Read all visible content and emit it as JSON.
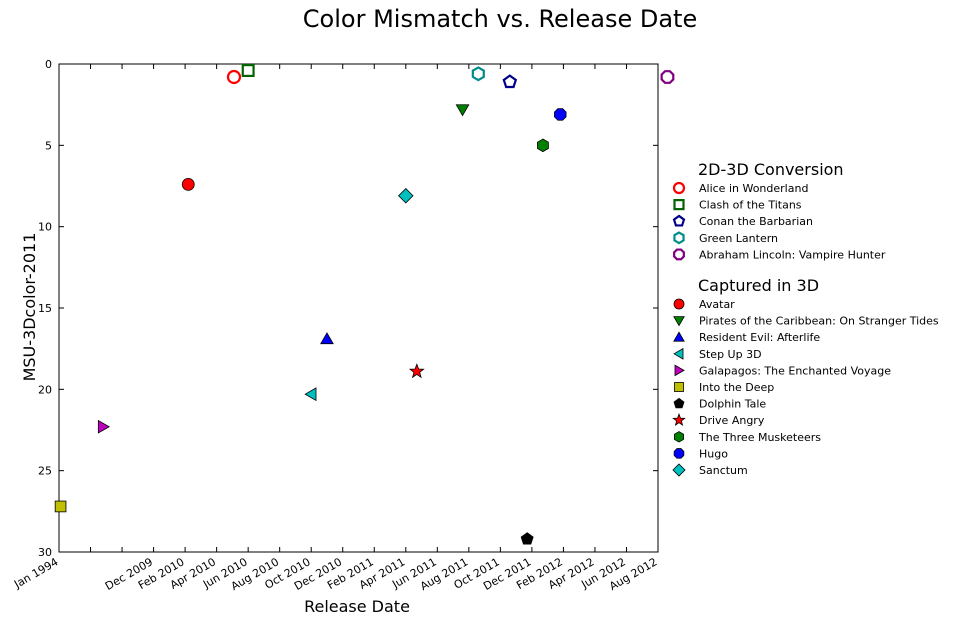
{
  "chart_data": {
    "type": "scatter",
    "title": "Color Mismatch vs. Release Date",
    "xlabel": "Release Date",
    "ylabel": "MSU-3Dcolor-2011",
    "ylim": [
      30,
      0
    ],
    "yticks": [
      0,
      5,
      10,
      15,
      20,
      25,
      30
    ],
    "xlim": [
      "1994-01",
      "2012-08"
    ],
    "xticks": [
      {
        "t": 0,
        "label": "Jan 1994"
      },
      {
        "t": 3,
        "label": "Dec 2009"
      },
      {
        "t": 4,
        "label": "Feb 2010"
      },
      {
        "t": 5,
        "label": "Apr 2010"
      },
      {
        "t": 6,
        "label": "Jun 2010"
      },
      {
        "t": 7,
        "label": "Aug 2010"
      },
      {
        "t": 8,
        "label": "Oct 2010"
      },
      {
        "t": 9,
        "label": "Dec 2010"
      },
      {
        "t": 10,
        "label": "Feb 2011"
      },
      {
        "t": 11,
        "label": "Apr 2011"
      },
      {
        "t": 12,
        "label": "Jun 2011"
      },
      {
        "t": 13,
        "label": "Aug 2011"
      },
      {
        "t": 14,
        "label": "Oct 2011"
      },
      {
        "t": 15,
        "label": "Dec 2011"
      },
      {
        "t": 16,
        "label": "Feb 2012"
      },
      {
        "t": 17,
        "label": "Apr 2012"
      },
      {
        "t": 18,
        "label": "Jun 2012"
      },
      {
        "t": 19,
        "label": "Aug 2012"
      }
    ],
    "grid": false,
    "legend_placement": "right",
    "groups": [
      {
        "title": "2D-3D Conversion",
        "series": [
          {
            "name": "Alice in Wonderland",
            "marker": "circle",
            "color": "#ff0000",
            "hollow": true,
            "date": "2010-03",
            "t": 5.55,
            "y": 0.8
          },
          {
            "name": "Clash of the Titans",
            "marker": "square",
            "color": "#006400",
            "hollow": true,
            "date": "2010-04",
            "t": 6.0,
            "y": 0.4
          },
          {
            "name": "Conan the Barbarian",
            "marker": "pentagon",
            "color": "#00008b",
            "hollow": true,
            "date": "2011-08",
            "t": 14.3,
            "y": 1.1
          },
          {
            "name": "Green Lantern",
            "marker": "hexagon",
            "color": "#008b8b",
            "hollow": true,
            "date": "2011-06",
            "t": 13.3,
            "y": 0.6
          },
          {
            "name": "Abraham Lincoln: Vampire Hunter",
            "marker": "octagon",
            "color": "#800080",
            "hollow": true,
            "date": "2012-06",
            "t": 19.3,
            "y": 0.8
          }
        ]
      },
      {
        "title": "Captured in 3D",
        "series": [
          {
            "name": "Avatar",
            "marker": "circle",
            "color": "#ff0000",
            "hollow": false,
            "date": "2009-12",
            "t": 4.1,
            "y": 7.4
          },
          {
            "name": "Pirates of the Caribbean: On Stranger Tides",
            "marker": "triangle-down",
            "color": "#008000",
            "hollow": false,
            "date": "2011-05",
            "t": 12.8,
            "y": 2.8
          },
          {
            "name": "Resident Evil: Afterlife",
            "marker": "triangle-up",
            "color": "#0000ff",
            "hollow": false,
            "date": "2010-09",
            "t": 8.5,
            "y": 16.9
          },
          {
            "name": "Step Up 3D",
            "marker": "triangle-left",
            "color": "#00bfbf",
            "hollow": false,
            "date": "2010-08",
            "t": 8.0,
            "y": 20.3
          },
          {
            "name": "Galapagos: The Enchanted Voyage",
            "marker": "triangle-right",
            "color": "#bf00bf",
            "hollow": false,
            "date": "1999",
            "t": 1.4,
            "y": 22.3
          },
          {
            "name": "Into the Deep",
            "marker": "square",
            "color": "#bfbf00",
            "hollow": false,
            "date": "1994",
            "t": 0.05,
            "y": 27.2
          },
          {
            "name": "Dolphin Tale",
            "marker": "pentagon",
            "color": "#000000",
            "hollow": false,
            "date": "2011-09",
            "t": 14.85,
            "y": 29.2
          },
          {
            "name": "Drive Angry",
            "marker": "star",
            "color": "#ff0000",
            "hollow": false,
            "date": "2011-02",
            "t": 11.35,
            "y": 18.9
          },
          {
            "name": "The Three Musketeers",
            "marker": "hexagon",
            "color": "#008000",
            "hollow": false,
            "date": "2011-10",
            "t": 15.35,
            "y": 5.0
          },
          {
            "name": "Hugo",
            "marker": "octagon",
            "color": "#0000ff",
            "hollow": false,
            "date": "2011-11",
            "t": 15.9,
            "y": 3.1
          },
          {
            "name": "Sanctum",
            "marker": "diamond",
            "color": "#00bfbf",
            "hollow": false,
            "date": "2011-02",
            "t": 11.0,
            "y": 8.1
          }
        ]
      }
    ]
  }
}
